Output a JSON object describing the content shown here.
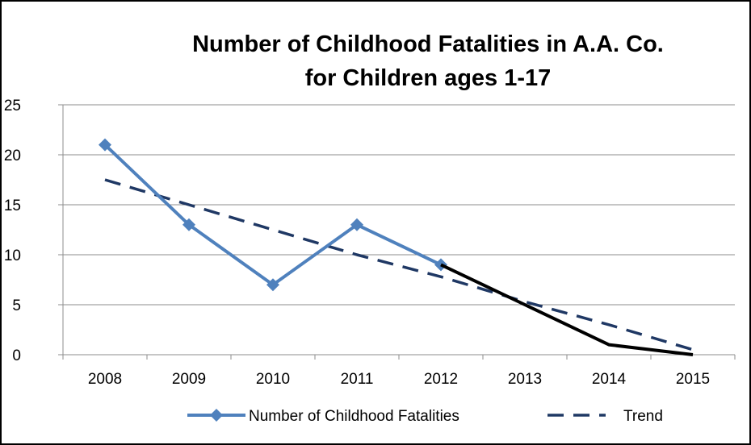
{
  "chart_data": {
    "type": "line",
    "title_lines": [
      "Number of Childhood Fatalities in A.A. Co.",
      "for Children ages 1-17"
    ],
    "categories": [
      "2008",
      "2009",
      "2010",
      "2011",
      "2012",
      "2013",
      "2014",
      "2015"
    ],
    "ylim": [
      0,
      25
    ],
    "yticks": [
      0,
      5,
      10,
      15,
      20,
      25
    ],
    "grid": "horizontal",
    "legend_position": "bottom",
    "series": [
      {
        "name": "Number of Childhood Fatalities",
        "values": [
          21,
          13,
          7,
          13,
          9,
          null,
          null,
          null
        ],
        "color": "#4f81bd",
        "marker": "diamond",
        "style": "solid"
      },
      {
        "values": [
          null,
          null,
          null,
          null,
          9,
          5,
          1,
          0
        ],
        "color": "#000000",
        "style": "solid"
      },
      {
        "name": "Trend",
        "values": [
          17.5,
          15.0,
          12.5,
          10.0,
          7.8,
          5.3,
          3.0,
          0.5
        ],
        "color": "#1f3864",
        "style": "dashed"
      }
    ]
  }
}
